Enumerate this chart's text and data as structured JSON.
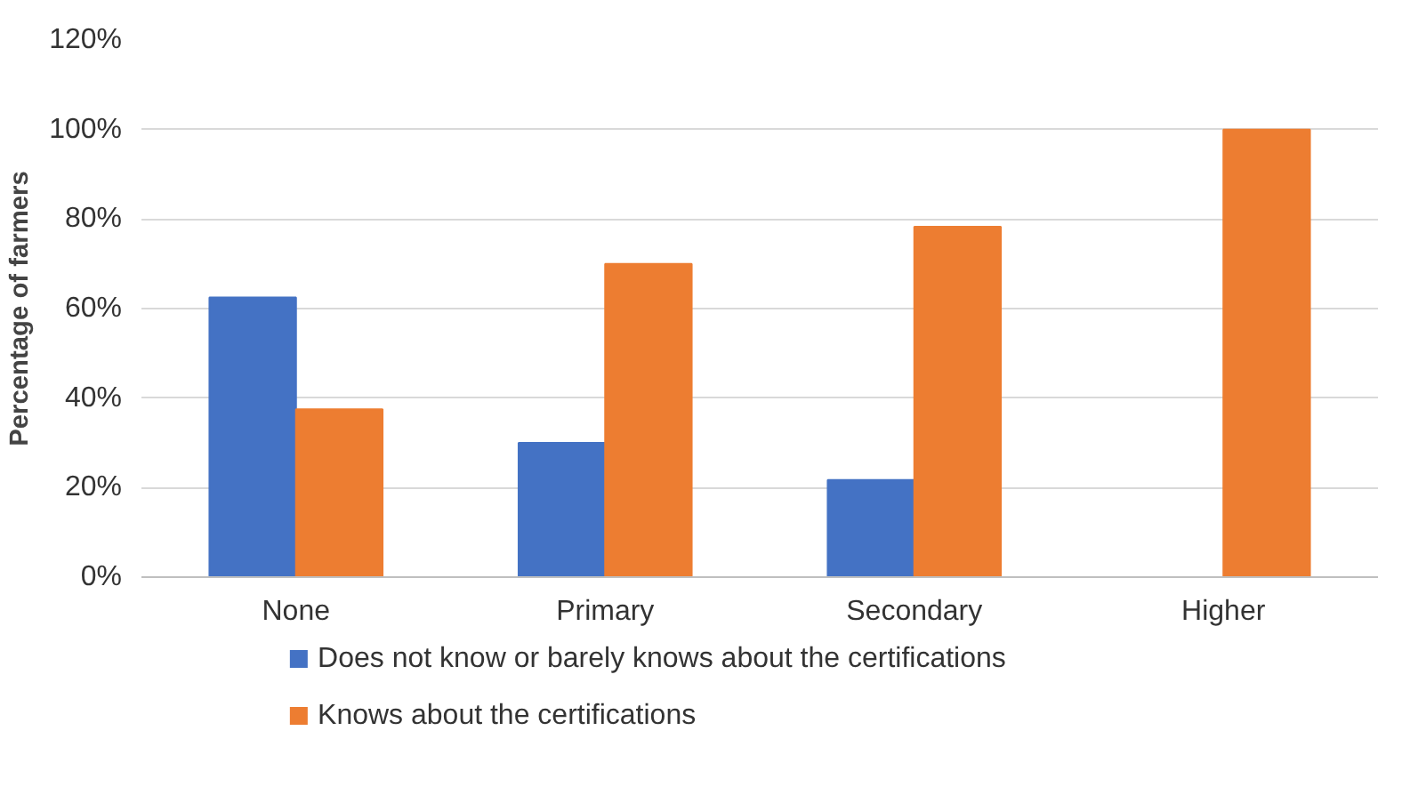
{
  "chart_data": {
    "type": "bar",
    "ylabel": "Percentage of farmers",
    "categories": [
      "None",
      "Primary",
      "Secondary",
      "Higher"
    ],
    "series": [
      {
        "name": "Does not know or barely knows about the certifications",
        "color": "#4472c4",
        "values": [
          62.5,
          30,
          21.7,
          0
        ]
      },
      {
        "name": "Knows about the certifications",
        "color": "#ed7d31",
        "values": [
          37.5,
          70,
          78.3,
          100
        ]
      }
    ],
    "ylim": [
      0,
      120
    ],
    "yticks": [
      {
        "value": 0,
        "label": "0%"
      },
      {
        "value": 20,
        "label": "20%"
      },
      {
        "value": 40,
        "label": "40%"
      },
      {
        "value": 60,
        "label": "60%"
      },
      {
        "value": 80,
        "label": "80%"
      },
      {
        "value": 100,
        "label": "100%"
      },
      {
        "value": 120,
        "label": "120%"
      }
    ],
    "grid": "y",
    "legend": "bottom"
  }
}
